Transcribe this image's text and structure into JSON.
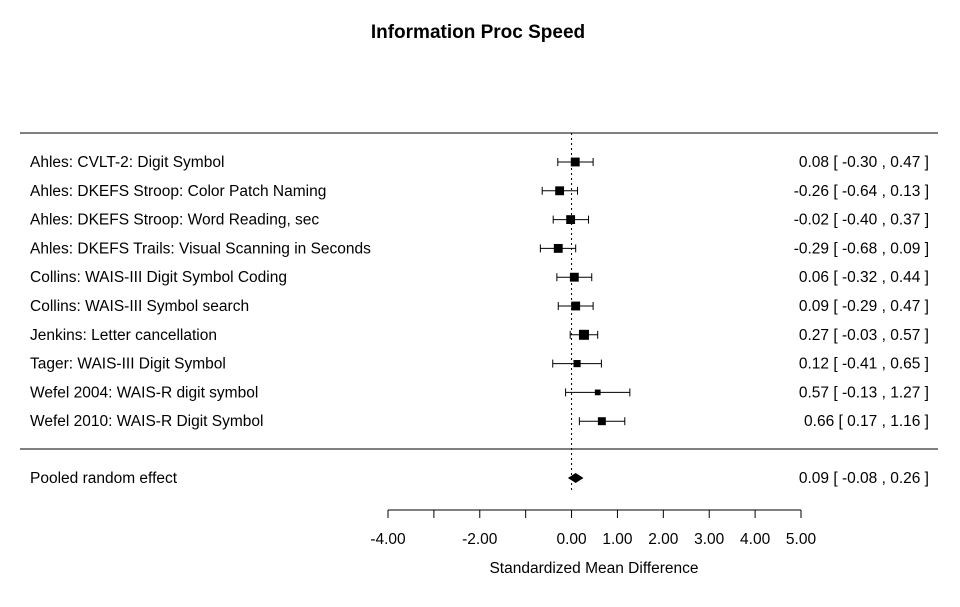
{
  "chart_data": {
    "type": "forest",
    "title": "Information Proc Speed",
    "xlabel": "Standardized Mean Difference",
    "xlim": [
      -4.0,
      5.0
    ],
    "ticks": [
      -4.0,
      -3.0,
      -2.0,
      -1.0,
      0.0,
      1.0,
      2.0,
      3.0,
      4.0,
      5.0
    ],
    "tick_labels": [
      "-4.00",
      "",
      "-2.00",
      "",
      "0.00",
      "1.00",
      "2.00",
      "3.00",
      "4.00",
      "5.00"
    ],
    "studies": [
      {
        "label": "Ahles: CVLT-2: Digit Symbol",
        "estimate": 0.08,
        "lower": -0.3,
        "upper": 0.47,
        "ci_text": "0.08 [ -0.30 , 0.47 ]",
        "weight": 0.7
      },
      {
        "label": "Ahles: DKEFS Stroop: Color Patch Naming",
        "estimate": -0.26,
        "lower": -0.64,
        "upper": 0.13,
        "ci_text": "-0.26 [ -0.64 , 0.13 ]",
        "weight": 0.7
      },
      {
        "label": "Ahles: DKEFS Stroop: Word Reading, sec",
        "estimate": -0.02,
        "lower": -0.4,
        "upper": 0.37,
        "ci_text": "-0.02 [ -0.40 , 0.37 ]",
        "weight": 0.7
      },
      {
        "label": "Ahles: DKEFS Trails: Visual Scanning in Seconds",
        "estimate": -0.29,
        "lower": -0.68,
        "upper": 0.09,
        "ci_text": "-0.29 [ -0.68 , 0.09 ]",
        "weight": 0.7
      },
      {
        "label": "Collins: WAIS-III Digit Symbol Coding",
        "estimate": 0.06,
        "lower": -0.32,
        "upper": 0.44,
        "ci_text": "0.06 [ -0.32 , 0.44 ]",
        "weight": 0.7
      },
      {
        "label": "Collins: WAIS-III Symbol search",
        "estimate": 0.09,
        "lower": -0.29,
        "upper": 0.47,
        "ci_text": "0.09 [ -0.29 , 0.47 ]",
        "weight": 0.7
      },
      {
        "label": "Jenkins: Letter cancellation",
        "estimate": 0.27,
        "lower": -0.03,
        "upper": 0.57,
        "ci_text": "0.27 [ -0.03 , 0.57 ]",
        "weight": 1.0
      },
      {
        "label": "Tager: WAIS-III Digit Symbol",
        "estimate": 0.12,
        "lower": -0.41,
        "upper": 0.65,
        "ci_text": "0.12 [ -0.41 , 0.65 ]",
        "weight": 0.35
      },
      {
        "label": "Wefel 2004: WAIS-R digit symbol",
        "estimate": 0.57,
        "lower": -0.13,
        "upper": 1.27,
        "ci_text": "0.57 [ -0.13 , 1.27 ]",
        "weight": 0.15
      },
      {
        "label": "Wefel 2010: WAIS-R Digit Symbol",
        "estimate": 0.66,
        "lower": 0.17,
        "upper": 1.16,
        "ci_text": "0.66 [  0.17 , 1.16 ]",
        "weight": 0.5
      }
    ],
    "pooled": {
      "label": "Pooled random effect",
      "estimate": 0.09,
      "lower": -0.08,
      "upper": 0.26,
      "ci_text": "0.09 [ -0.08 , 0.26 ]"
    }
  }
}
